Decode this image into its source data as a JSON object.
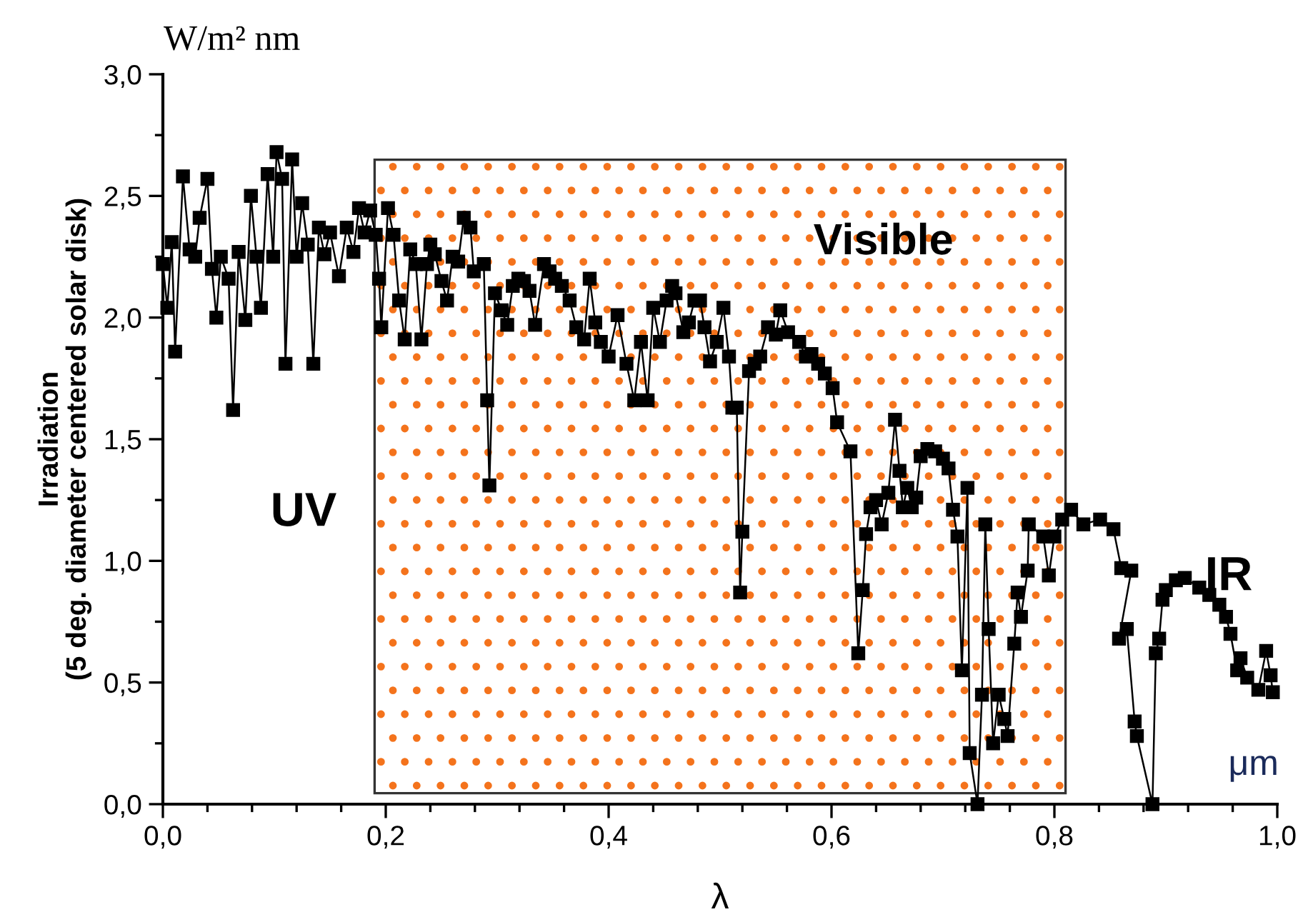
{
  "chart_data": {
    "type": "line",
    "xlabel": "λ",
    "ylabel": "Irradiation\n(5 deg. diameter centered solar disk)",
    "annotations": [
      "W/m² nm",
      "μm",
      "UV",
      "Visible",
      "IR"
    ],
    "marker": "square",
    "line_style": "solid",
    "grid": false,
    "legend": false,
    "x": [
      0.0,
      0.004,
      0.008,
      0.011,
      0.018,
      0.024,
      0.029,
      0.033,
      0.04,
      0.044,
      0.048,
      0.052,
      0.059,
      0.063,
      0.068,
      0.074,
      0.079,
      0.084,
      0.088,
      0.094,
      0.099,
      0.102,
      0.107,
      0.11,
      0.116,
      0.12,
      0.125,
      0.13,
      0.135,
      0.14,
      0.145,
      0.15,
      0.158,
      0.165,
      0.171,
      0.176,
      0.181,
      0.186,
      0.191,
      0.194,
      0.196,
      0.202,
      0.207,
      0.212,
      0.217,
      0.222,
      0.227,
      0.232,
      0.237,
      0.24,
      0.244,
      0.25,
      0.255,
      0.26,
      0.265,
      0.27,
      0.276,
      0.279,
      0.288,
      0.291,
      0.293,
      0.298,
      0.304,
      0.309,
      0.314,
      0.319,
      0.324,
      0.329,
      0.334,
      0.342,
      0.347,
      0.352,
      0.358,
      0.365,
      0.371,
      0.378,
      0.383,
      0.388,
      0.393,
      0.4,
      0.408,
      0.416,
      0.423,
      0.429,
      0.435,
      0.44,
      0.446,
      0.452,
      0.457,
      0.46,
      0.467,
      0.472,
      0.477,
      0.482,
      0.486,
      0.491,
      0.497,
      0.503,
      0.508,
      0.511,
      0.515,
      0.518,
      0.52,
      0.526,
      0.531,
      0.536,
      0.543,
      0.55,
      0.554,
      0.561,
      0.571,
      0.577,
      0.582,
      0.588,
      0.594,
      0.601,
      0.605,
      0.617,
      0.624,
      0.628,
      0.631,
      0.635,
      0.64,
      0.645,
      0.651,
      0.657,
      0.661,
      0.664,
      0.668,
      0.672,
      0.676,
      0.68,
      0.686,
      0.693,
      0.7,
      0.705,
      0.709,
      0.713,
      0.717,
      0.722,
      0.724,
      0.731,
      0.735,
      0.738,
      0.741,
      0.745,
      0.75,
      0.755,
      0.758,
      0.764,
      0.767,
      0.77,
      0.776,
      0.777,
      0.79,
      0.795,
      0.8,
      0.807,
      0.815,
      0.826,
      0.841,
      0.853,
      0.86,
      0.869,
      0.858,
      0.865,
      0.872,
      0.874,
      0.888,
      0.891,
      0.894,
      0.897,
      0.9,
      0.909,
      0.917,
      0.93,
      0.939,
      0.948,
      0.954,
      0.958,
      0.964,
      0.967,
      0.973,
      0.983,
      0.99,
      0.994,
      0.996
    ],
    "series": [
      {
        "color": "#000000",
        "values": [
          2.22,
          2.04,
          2.31,
          1.86,
          2.58,
          2.28,
          2.25,
          2.41,
          2.57,
          2.2,
          2.0,
          2.25,
          2.16,
          1.62,
          2.27,
          1.99,
          2.5,
          2.25,
          2.04,
          2.59,
          2.25,
          2.68,
          2.57,
          1.81,
          2.65,
          2.25,
          2.47,
          2.3,
          1.81,
          2.37,
          2.26,
          2.35,
          2.17,
          2.37,
          2.27,
          2.45,
          2.35,
          2.44,
          2.34,
          2.16,
          1.96,
          2.45,
          2.34,
          2.07,
          1.91,
          2.28,
          2.22,
          1.91,
          2.22,
          2.3,
          2.26,
          2.15,
          2.07,
          2.25,
          2.23,
          2.41,
          2.37,
          2.19,
          2.22,
          1.66,
          1.31,
          2.1,
          2.03,
          1.97,
          2.13,
          2.16,
          2.15,
          2.11,
          1.97,
          2.22,
          2.19,
          2.16,
          2.13,
          2.07,
          1.96,
          1.91,
          2.16,
          1.98,
          1.9,
          1.84,
          2.01,
          1.81,
          1.66,
          1.9,
          1.66,
          2.04,
          1.9,
          2.07,
          2.13,
          2.1,
          1.94,
          1.98,
          2.07,
          2.07,
          1.96,
          1.82,
          1.9,
          2.04,
          1.84,
          1.63,
          1.63,
          0.87,
          1.12,
          1.78,
          1.81,
          1.84,
          1.96,
          1.93,
          2.03,
          1.94,
          1.9,
          1.84,
          1.85,
          1.81,
          1.77,
          1.71,
          1.57,
          1.45,
          0.62,
          0.88,
          1.11,
          1.22,
          1.25,
          1.15,
          1.28,
          1.58,
          1.37,
          1.22,
          1.3,
          1.22,
          1.26,
          1.43,
          1.46,
          1.45,
          1.42,
          1.38,
          1.21,
          1.1,
          0.55,
          1.3,
          0.21,
          0.0,
          0.45,
          1.15,
          0.72,
          0.25,
          0.45,
          0.35,
          0.28,
          0.66,
          0.87,
          0.77,
          0.96,
          1.15,
          1.1,
          0.94,
          1.1,
          1.17,
          1.21,
          1.15,
          1.17,
          1.13,
          0.97,
          0.96,
          0.68,
          0.72,
          0.34,
          0.28,
          0.0,
          0.62,
          0.68,
          0.84,
          0.88,
          0.92,
          0.93,
          0.89,
          0.86,
          0.82,
          0.77,
          0.7,
          0.55,
          0.6,
          0.52,
          0.47,
          0.63,
          0.53,
          0.46
        ]
      }
    ],
    "bands": [
      {
        "axis": "x",
        "from": 0.19,
        "to": 0.81,
        "color": "#f4731c"
      }
    ],
    "xlim": [
      0.0,
      1.0
    ],
    "xticks": [
      {
        "value": 0.0,
        "label": "0,0"
      },
      {
        "value": 0.04,
        "label": null
      },
      {
        "value": 0.08,
        "label": null
      },
      {
        "value": 0.12,
        "label": null
      },
      {
        "value": 0.16,
        "label": null
      },
      {
        "value": 0.2,
        "label": "0,2"
      },
      {
        "value": 0.24,
        "label": null
      },
      {
        "value": 0.28,
        "label": null
      },
      {
        "value": 0.32,
        "label": null
      },
      {
        "value": 0.36,
        "label": null
      },
      {
        "value": 0.4,
        "label": "0,4"
      },
      {
        "value": 0.44,
        "label": null
      },
      {
        "value": 0.48,
        "label": null
      },
      {
        "value": 0.52,
        "label": null
      },
      {
        "value": 0.56,
        "label": null
      },
      {
        "value": 0.6,
        "label": "0,6"
      },
      {
        "value": 0.64,
        "label": null
      },
      {
        "value": 0.68,
        "label": null
      },
      {
        "value": 0.72,
        "label": null
      },
      {
        "value": 0.76,
        "label": null
      },
      {
        "value": 0.8,
        "label": "0,8"
      },
      {
        "value": 0.84,
        "label": null
      },
      {
        "value": 0.88,
        "label": null
      },
      {
        "value": 0.92,
        "label": null
      },
      {
        "value": 0.96,
        "label": null
      },
      {
        "value": 1.0,
        "label": "1,0"
      }
    ],
    "ylim": [
      0.0,
      3.0
    ],
    "yticks": [
      {
        "value": 0.0,
        "label": "0,0"
      },
      {
        "value": 0.25,
        "label": null
      },
      {
        "value": 0.5,
        "label": "0,5"
      },
      {
        "value": 0.75,
        "label": null
      },
      {
        "value": 1.0,
        "label": "1,0"
      },
      {
        "value": 1.25,
        "label": null
      },
      {
        "value": 1.5,
        "label": "1,5"
      },
      {
        "value": 1.75,
        "label": null
      },
      {
        "value": 2.0,
        "label": "2,0"
      },
      {
        "value": 2.25,
        "label": null
      },
      {
        "value": 2.5,
        "label": "2,5"
      },
      {
        "value": 2.75,
        "label": null
      },
      {
        "value": 3.0,
        "label": "3,0"
      }
    ]
  }
}
